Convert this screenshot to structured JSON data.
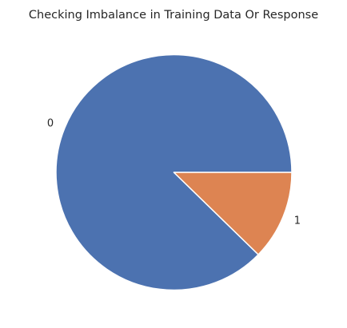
{
  "chart_data": {
    "type": "pie",
    "title": "Checking Imbalance in Training Data Or Response",
    "categories": [
      "0",
      "1"
    ],
    "values": [
      87.7,
      12.3
    ],
    "colors": [
      "#4c72b0",
      "#dd8452"
    ],
    "start_angle_deg": 0,
    "direction": "counterclockwise",
    "edge_color": "#ffffff",
    "legend": "none"
  }
}
